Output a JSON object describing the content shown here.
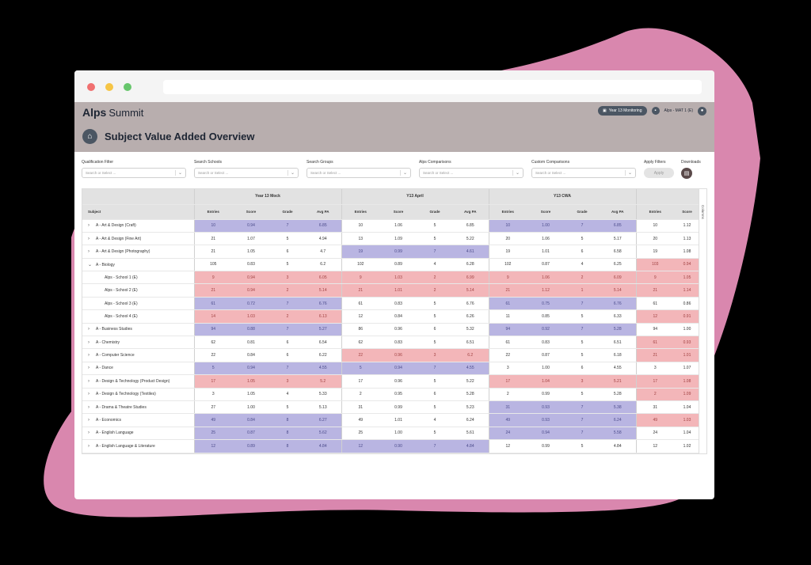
{
  "app": {
    "logo_mark": "Alps",
    "logo_sub": "Summit",
    "monitoring_pill": "Year 13 Monitoring",
    "user_label": "Alps - MAT 1 (E)",
    "page_title": "Subject Value Added Overview",
    "icons": {
      "home": "home-icon",
      "user": "user-icon",
      "calendar": "calendar-icon",
      "download": "download-icon"
    }
  },
  "filters": [
    {
      "label": "Qualification Filter",
      "placeholder": "Search or Select ..."
    },
    {
      "label": "Search Schools",
      "placeholder": "Search or Select ..."
    },
    {
      "label": "Search Groups",
      "placeholder": "Search or Select ..."
    },
    {
      "label": "Alps Comparisons",
      "placeholder": "Search or Select ..."
    },
    {
      "label": "Custom Comparisons",
      "placeholder": "Search or Select ..."
    }
  ],
  "apply_filters": {
    "label": "Apply Filters",
    "button": "Apply"
  },
  "downloads": {
    "label": "Downloads"
  },
  "table": {
    "groups": [
      "Year 13 Mock",
      "Y13 April",
      "Y13 CWA"
    ],
    "subject_header": "Subject",
    "columns": [
      "Entries",
      "Score",
      "Grade",
      "Avg PA"
    ],
    "extra_columns": [
      "Entries",
      "Score"
    ],
    "columns_tab": "Columns",
    "colors": {
      "blue": "#b9b5e2",
      "red": "#f3b6b9"
    },
    "rows": [
      {
        "subject": "A - Art & Design (Craft)",
        "expand": ">",
        "child": false,
        "mock": [
          "10",
          "0.94",
          "7",
          "6.85"
        ],
        "mock_c": "b",
        "april": [
          "10",
          "1.06",
          "5",
          "6.85"
        ],
        "april_c": "n",
        "cwa": [
          "10",
          "1.00",
          "7",
          "6.85"
        ],
        "cwa_c": "b",
        "extra": [
          "10",
          "1.12"
        ],
        "extra_c": "n"
      },
      {
        "subject": "A - Art & Design (Fine Art)",
        "expand": ">",
        "child": false,
        "mock": [
          "21",
          "1.07",
          "5",
          "4.94"
        ],
        "mock_c": "n",
        "april": [
          "13",
          "1.09",
          "5",
          "5.22"
        ],
        "april_c": "n",
        "cwa": [
          "20",
          "1.06",
          "5",
          "5.17"
        ],
        "cwa_c": "n",
        "extra": [
          "20",
          "1.13"
        ],
        "extra_c": "n"
      },
      {
        "subject": "A - Art & Design (Photography)",
        "expand": ">",
        "child": false,
        "mock": [
          "21",
          "1.05",
          "6",
          "4.7"
        ],
        "mock_c": "n",
        "april": [
          "19",
          "0.99",
          "7",
          "4.61"
        ],
        "april_c": "b",
        "cwa": [
          "19",
          "1.01",
          "6",
          "6.58"
        ],
        "cwa_c": "n",
        "extra": [
          "19",
          "1.08"
        ],
        "extra_c": "n"
      },
      {
        "subject": "A - Biology",
        "expand": "v",
        "child": false,
        "mock": [
          "105",
          "0.83",
          "5",
          "6.2"
        ],
        "mock_c": "n",
        "april": [
          "102",
          "0.89",
          "4",
          "6.28"
        ],
        "april_c": "n",
        "cwa": [
          "102",
          "0.87",
          "4",
          "6.25"
        ],
        "cwa_c": "n",
        "extra": [
          "103",
          "0.94"
        ],
        "extra_c": "r"
      },
      {
        "subject": "Alps - School 1 (E)",
        "expand": "",
        "child": true,
        "mock": [
          "9",
          "0.94",
          "3",
          "6.05"
        ],
        "mock_c": "r",
        "april": [
          "9",
          "1.03",
          "2",
          "6.99"
        ],
        "april_c": "r",
        "cwa": [
          "9",
          "1.06",
          "2",
          "6.09"
        ],
        "cwa_c": "r",
        "extra": [
          "9",
          "1.05"
        ],
        "extra_c": "r"
      },
      {
        "subject": "Alps - School 2 (E)",
        "expand": "",
        "child": true,
        "mock": [
          "21",
          "0.94",
          "2",
          "5.14"
        ],
        "mock_c": "r",
        "april": [
          "21",
          "1.01",
          "2",
          "5.14"
        ],
        "april_c": "r",
        "cwa": [
          "21",
          "1.12",
          "1",
          "5.14"
        ],
        "cwa_c": "r",
        "extra": [
          "21",
          "1.14"
        ],
        "extra_c": "r"
      },
      {
        "subject": "Alps - School 3 (E)",
        "expand": "",
        "child": true,
        "mock": [
          "61",
          "0.72",
          "7",
          "6.76"
        ],
        "mock_c": "b",
        "april": [
          "61",
          "0.83",
          "5",
          "6.76"
        ],
        "april_c": "n",
        "cwa": [
          "61",
          "0.75",
          "7",
          "6.76"
        ],
        "cwa_c": "b",
        "extra": [
          "61",
          "0.86"
        ],
        "extra_c": "n"
      },
      {
        "subject": "Alps - School 4 (E)",
        "expand": "",
        "child": true,
        "mock": [
          "14",
          "1.03",
          "2",
          "6.13"
        ],
        "mock_c": "r",
        "april": [
          "12",
          "0.84",
          "5",
          "6.26"
        ],
        "april_c": "n",
        "cwa": [
          "11",
          "0.85",
          "5",
          "6.33"
        ],
        "cwa_c": "n",
        "extra": [
          "12",
          "0.91"
        ],
        "extra_c": "r"
      },
      {
        "subject": "A - Business Studies",
        "expand": ">",
        "child": false,
        "mock": [
          "94",
          "0.88",
          "7",
          "5.27"
        ],
        "mock_c": "b",
        "april": [
          "86",
          "0.96",
          "6",
          "5.32"
        ],
        "april_c": "n",
        "cwa": [
          "94",
          "0.92",
          "7",
          "5.28"
        ],
        "cwa_c": "b",
        "extra": [
          "94",
          "1.00"
        ],
        "extra_c": "n"
      },
      {
        "subject": "A - Chemistry",
        "expand": ">",
        "child": false,
        "mock": [
          "62",
          "0.81",
          "6",
          "6.54"
        ],
        "mock_c": "n",
        "april": [
          "62",
          "0.83",
          "5",
          "6.51"
        ],
        "april_c": "n",
        "cwa": [
          "61",
          "0.83",
          "5",
          "6.51"
        ],
        "cwa_c": "n",
        "extra": [
          "61",
          "0.93"
        ],
        "extra_c": "r"
      },
      {
        "subject": "A - Computer Science",
        "expand": ">",
        "child": false,
        "mock": [
          "22",
          "0.84",
          "6",
          "6.22"
        ],
        "mock_c": "n",
        "april": [
          "22",
          "0.96",
          "3",
          "6.2"
        ],
        "april_c": "r",
        "cwa": [
          "22",
          "0.87",
          "5",
          "6.18"
        ],
        "cwa_c": "n",
        "extra": [
          "21",
          "1.01"
        ],
        "extra_c": "r"
      },
      {
        "subject": "A - Dance",
        "expand": ">",
        "child": false,
        "mock": [
          "5",
          "0.94",
          "7",
          "4.55"
        ],
        "mock_c": "b",
        "april": [
          "5",
          "0.94",
          "7",
          "4.55"
        ],
        "april_c": "b",
        "cwa": [
          "3",
          "1.00",
          "6",
          "4.55"
        ],
        "cwa_c": "n",
        "extra": [
          "3",
          "1.07"
        ],
        "extra_c": "n"
      },
      {
        "subject": "A - Design & Technology (Product Design)",
        "expand": ">",
        "child": false,
        "mock": [
          "17",
          "1.05",
          "3",
          "5.2"
        ],
        "mock_c": "r",
        "april": [
          "17",
          "0.96",
          "5",
          "5.22"
        ],
        "april_c": "n",
        "cwa": [
          "17",
          "1.04",
          "3",
          "5.21"
        ],
        "cwa_c": "r",
        "extra": [
          "17",
          "1.08"
        ],
        "extra_c": "r"
      },
      {
        "subject": "A - Design & Technology (Textiles)",
        "expand": ">",
        "child": false,
        "mock": [
          "3",
          "1.05",
          "4",
          "5.33"
        ],
        "mock_c": "n",
        "april": [
          "2",
          "0.95",
          "6",
          "5.28"
        ],
        "april_c": "n",
        "cwa": [
          "2",
          "0.99",
          "5",
          "5.28"
        ],
        "cwa_c": "n",
        "extra": [
          "2",
          "1.09"
        ],
        "extra_c": "r"
      },
      {
        "subject": "A - Drama & Theatre Studies",
        "expand": ">",
        "child": false,
        "mock": [
          "27",
          "1.00",
          "5",
          "5.13"
        ],
        "mock_c": "n",
        "april": [
          "31",
          "0.99",
          "5",
          "5.23"
        ],
        "april_c": "n",
        "cwa": [
          "31",
          "0.93",
          "7",
          "5.38"
        ],
        "cwa_c": "b",
        "extra": [
          "31",
          "1.04"
        ],
        "extra_c": "n"
      },
      {
        "subject": "A - Economics",
        "expand": ">",
        "child": false,
        "mock": [
          "49",
          "0.84",
          "8",
          "6.27"
        ],
        "mock_c": "b",
        "april": [
          "49",
          "1.01",
          "4",
          "6.24"
        ],
        "april_c": "n",
        "cwa": [
          "49",
          "0.93",
          "7",
          "6.24"
        ],
        "cwa_c": "b",
        "extra": [
          "49",
          "1.03"
        ],
        "extra_c": "r"
      },
      {
        "subject": "A - English Language",
        "expand": ">",
        "child": false,
        "mock": [
          "25",
          "0.87",
          "8",
          "5.62"
        ],
        "mock_c": "b",
        "april": [
          "25",
          "1.00",
          "5",
          "5.61"
        ],
        "april_c": "n",
        "cwa": [
          "24",
          "0.94",
          "7",
          "5.58"
        ],
        "cwa_c": "b",
        "extra": [
          "24",
          "1.04"
        ],
        "extra_c": "n"
      },
      {
        "subject": "A - English Language & Literature",
        "expand": ">",
        "child": false,
        "mock": [
          "12",
          "0.89",
          "8",
          "4.84"
        ],
        "mock_c": "b",
        "april": [
          "12",
          "0.90",
          "7",
          "4.84"
        ],
        "april_c": "b",
        "cwa": [
          "12",
          "0.99",
          "5",
          "4.84"
        ],
        "cwa_c": "n",
        "extra": [
          "12",
          "1.02"
        ],
        "extra_c": "n"
      }
    ]
  }
}
